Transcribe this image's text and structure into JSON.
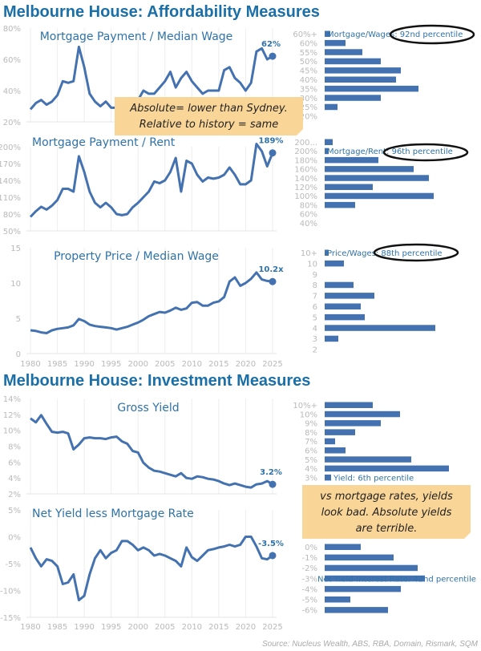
{
  "titles": {
    "affordability": "Melbourne House: Affordability Measures",
    "investment": "Melbourne House: Investment Measures"
  },
  "source": "Source: Nucleus Wealth, ABS, RBA, Domain, Rismark, SQM",
  "colors": {
    "line": "#4472b0",
    "bar": "#4472b0",
    "title": "#1a6fa8",
    "note": "#f9d597"
  },
  "notes": [
    {
      "lines": [
        "Absolute= lower than Sydney.",
        "Relative to history = same"
      ]
    },
    {
      "lines": [
        "vs mortgage rates, yields",
        "look bad. Absolute yields",
        "are terrible."
      ]
    }
  ],
  "chart_data": [
    {
      "type": "line",
      "title": "Mortgage Payment / Median Wage",
      "x": [
        1980,
        1981,
        1982,
        1983,
        1984,
        1985,
        1986,
        1987,
        1988,
        1989,
        1990,
        1991,
        1992,
        1993,
        1994,
        1995,
        1996,
        1997,
        1998,
        1999,
        2000,
        2001,
        2002,
        2003,
        2004,
        2005,
        2006,
        2007,
        2008,
        2009,
        2010,
        2011,
        2012,
        2013,
        2014,
        2015,
        2016,
        2017,
        2018,
        2019,
        2020,
        2021,
        2022,
        2023,
        2024,
        2025
      ],
      "y": [
        28,
        32,
        34,
        31,
        33,
        37,
        46,
        45,
        46,
        68,
        55,
        38,
        33,
        30,
        33,
        29,
        29,
        28,
        31,
        33,
        34,
        40,
        38,
        38,
        42,
        46,
        52,
        42,
        48,
        52,
        46,
        42,
        38,
        40,
        40,
        40,
        53,
        55,
        48,
        45,
        40,
        45,
        65,
        67,
        60,
        62
      ],
      "ylim": [
        20,
        80
      ],
      "yticks": [
        "80%",
        "60%",
        "40%",
        "20%"
      ],
      "end_label": "62%",
      "histogram": {
        "categories": [
          "60%+",
          "60%",
          "55%",
          "50%",
          "45%",
          "40%",
          "35%",
          "30%",
          "25%",
          "20%"
        ],
        "values": [
          7,
          26,
          47,
          70,
          95,
          89,
          117,
          70,
          16,
          0
        ],
        "annotation": "Mortgage/Wages: 92nd percentile"
      }
    },
    {
      "type": "line",
      "title": "Mortgage Payment / Rent",
      "x": [
        1980,
        1981,
        1982,
        1983,
        1984,
        1985,
        1986,
        1987,
        1988,
        1989,
        1990,
        1991,
        1992,
        1993,
        1994,
        1995,
        1996,
        1997,
        1998,
        1999,
        2000,
        2001,
        2002,
        2003,
        2004,
        2005,
        2006,
        2007,
        2008,
        2009,
        2010,
        2011,
        2012,
        2013,
        2014,
        2015,
        2016,
        2017,
        2018,
        2019,
        2020,
        2021,
        2022,
        2023,
        2024,
        2025
      ],
      "y": [
        75,
        85,
        93,
        88,
        95,
        105,
        125,
        125,
        120,
        183,
        155,
        120,
        100,
        92,
        100,
        92,
        80,
        78,
        80,
        92,
        100,
        110,
        120,
        138,
        135,
        140,
        155,
        180,
        120,
        175,
        170,
        150,
        138,
        145,
        143,
        145,
        150,
        163,
        150,
        133,
        133,
        140,
        205,
        192,
        165,
        189
      ],
      "ylim": [
        50,
        200
      ],
      "yticks": [
        "200%",
        "170%",
        "140%",
        "110%",
        "80%",
        "50%"
      ],
      "end_label": "189%",
      "histogram": {
        "categories": [
          "200...",
          "200%",
          "180%",
          "160%",
          "140%",
          "120%",
          "100%",
          "80%",
          "60%",
          "40%"
        ],
        "values": [
          10,
          5,
          67,
          111,
          130,
          60,
          136,
          38,
          0,
          0
        ],
        "annotation": "Mortgage/Rent: 96th percentile"
      }
    },
    {
      "type": "line",
      "title": "Property Price / Median Wage",
      "x": [
        1980,
        1981,
        1982,
        1983,
        1984,
        1985,
        1986,
        1987,
        1988,
        1989,
        1990,
        1991,
        1992,
        1993,
        1994,
        1995,
        1996,
        1997,
        1998,
        1999,
        2000,
        2001,
        2002,
        2003,
        2004,
        2005,
        2006,
        2007,
        2008,
        2009,
        2010,
        2011,
        2012,
        2013,
        2014,
        2015,
        2016,
        2017,
        2018,
        2019,
        2020,
        2021,
        2022,
        2023,
        2024,
        2025
      ],
      "y": [
        3.3,
        3.2,
        3.0,
        2.9,
        3.3,
        3.5,
        3.6,
        3.7,
        4.0,
        4.9,
        4.6,
        4.1,
        3.9,
        3.8,
        3.7,
        3.6,
        3.4,
        3.6,
        3.8,
        4.1,
        4.4,
        4.8,
        5.3,
        5.6,
        5.9,
        5.8,
        6.1,
        6.5,
        6.2,
        6.4,
        7.2,
        7.3,
        6.8,
        6.8,
        7.2,
        7.4,
        8.0,
        10.2,
        10.8,
        9.6,
        10.0,
        10.6,
        11.5,
        10.5,
        10.3,
        10.2
      ],
      "ylim": [
        0,
        15
      ],
      "yticks": [
        "15",
        "10",
        "5",
        "0"
      ],
      "end_label": "10.2x",
      "xticks": [
        "1980",
        "1985",
        "1990",
        "1995",
        "2000",
        "2005",
        "2010",
        "2015",
        "2020",
        "2025"
      ],
      "histogram": {
        "categories": [
          "10+",
          "10",
          "9",
          "8",
          "7",
          "6",
          "5",
          "4",
          "3",
          "2"
        ],
        "values": [
          5,
          24,
          0,
          36,
          62,
          45,
          50,
          138,
          17,
          0
        ],
        "annotation": "Price/Wages: 88th percentile"
      }
    },
    {
      "type": "line",
      "title": "Gross Yield",
      "x": [
        1980,
        1981,
        1982,
        1983,
        1984,
        1985,
        1986,
        1987,
        1988,
        1989,
        1990,
        1991,
        1992,
        1993,
        1994,
        1995,
        1996,
        1997,
        1998,
        1999,
        2000,
        2001,
        2002,
        2003,
        2004,
        2005,
        2006,
        2007,
        2008,
        2009,
        2010,
        2011,
        2012,
        2013,
        2014,
        2015,
        2016,
        2017,
        2018,
        2019,
        2020,
        2021,
        2022,
        2023,
        2024,
        2025
      ],
      "y": [
        11.5,
        11.0,
        11.9,
        10.8,
        9.8,
        9.7,
        9.8,
        9.6,
        7.6,
        8.2,
        9.0,
        9.1,
        9.0,
        9.0,
        8.9,
        9.1,
        9.2,
        8.6,
        8.3,
        7.4,
        7.2,
        5.9,
        5.3,
        4.9,
        4.8,
        4.6,
        4.4,
        4.2,
        4.6,
        4.0,
        3.9,
        4.2,
        4.1,
        3.9,
        3.8,
        3.6,
        3.3,
        3.1,
        3.3,
        3.1,
        2.9,
        2.8,
        3.2,
        3.3,
        3.6,
        3.2
      ],
      "ylim": [
        2,
        14
      ],
      "yticks": [
        "14%",
        "12%",
        "10%",
        "8%",
        "6%",
        "4%",
        "2%"
      ],
      "end_label": "3.2%",
      "histogram": {
        "categories": [
          "10%+",
          "10%",
          "9%",
          "8%",
          "7%",
          "6%",
          "5%",
          "4%",
          "3%"
        ],
        "values": [
          60,
          94,
          70,
          38,
          13,
          26,
          108,
          155,
          8
        ],
        "annotation": "Yield: 6th percentile"
      }
    },
    {
      "type": "line",
      "title": "Net Yield less Mortgage Rate",
      "x": [
        1980,
        1981,
        1982,
        1983,
        1984,
        1985,
        1986,
        1987,
        1988,
        1989,
        1990,
        1991,
        1992,
        1993,
        1994,
        1995,
        1996,
        1997,
        1998,
        1999,
        2000,
        2001,
        2002,
        2003,
        2004,
        2005,
        2006,
        2007,
        2008,
        2009,
        2010,
        2011,
        2012,
        2013,
        2014,
        2015,
        2016,
        2017,
        2018,
        2019,
        2020,
        2021,
        2022,
        2023,
        2024,
        2025
      ],
      "y": [
        -2,
        -4,
        -5.5,
        -4.2,
        -4.5,
        -5.5,
        -8.8,
        -8.5,
        -7,
        -11.8,
        -11,
        -7,
        -4,
        -2.5,
        -4,
        -3,
        -2.5,
        -0.8,
        -0.8,
        -1.5,
        -2.5,
        -2,
        -2.5,
        -3.5,
        -3.2,
        -3.5,
        -4,
        -4.5,
        -5.5,
        -2,
        -3.8,
        -4.5,
        -3.5,
        -2.5,
        -2.3,
        -2.0,
        -1.8,
        -1.5,
        -1.8,
        -1.5,
        0,
        0,
        -1.8,
        -4,
        -4.2,
        -3.5
      ],
      "ylim": [
        -15,
        5
      ],
      "yticks": [
        "5%",
        "0%",
        "-5%",
        "-10%",
        "-15%"
      ],
      "end_label": "-3.5%",
      "xticks": [
        "1980",
        "1985",
        "1990",
        "1995",
        "2000",
        "2005",
        "2010",
        "2015",
        "2020",
        "2025"
      ],
      "histogram": {
        "categories": [
          "0%",
          "-1%",
          "-2%",
          "-3%",
          "-4%",
          "-5%",
          "-6%"
        ],
        "values": [
          45,
          86,
          116,
          125,
          95,
          32,
          79
        ],
        "annotation": "Net Yield-Interest Rate: 42nd percentile"
      }
    }
  ]
}
